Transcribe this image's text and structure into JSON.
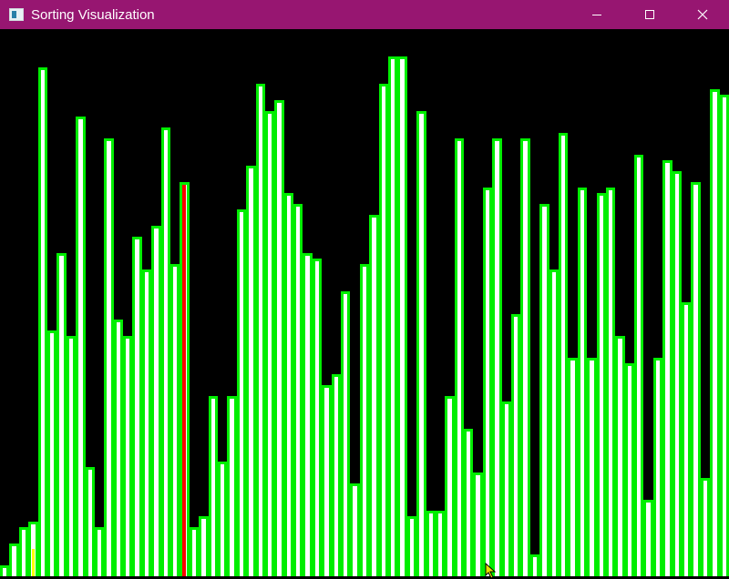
{
  "window": {
    "title": "Sorting Visualization",
    "controls": [
      "minimize",
      "maximize",
      "close"
    ]
  },
  "colors": {
    "titlebar": "#971671",
    "background": "#000000",
    "bar_outline": "#00ee00",
    "bar_fill": "#ffffff",
    "compare_highlight": "#ff0000",
    "swap_highlight": "#ffff00"
  },
  "visualization": {
    "bar_values": [
      2,
      6,
      9,
      10,
      93,
      45,
      59,
      44,
      84,
      20,
      9,
      80,
      47,
      44,
      62,
      56,
      64,
      82,
      57,
      72,
      9,
      11,
      33,
      21,
      33,
      67,
      75,
      90,
      85,
      87,
      70,
      68,
      59,
      58,
      35,
      37,
      52,
      17,
      57,
      66,
      90,
      95,
      95,
      11,
      85,
      12,
      12,
      33,
      80,
      27,
      19,
      71,
      80,
      32,
      48,
      80,
      4,
      68,
      56,
      81,
      40,
      71,
      40,
      70,
      71,
      44,
      39,
      77,
      14,
      40,
      76,
      74,
      50,
      72,
      18,
      89,
      88
    ],
    "compare_index": 19,
    "swap_index": 3
  }
}
